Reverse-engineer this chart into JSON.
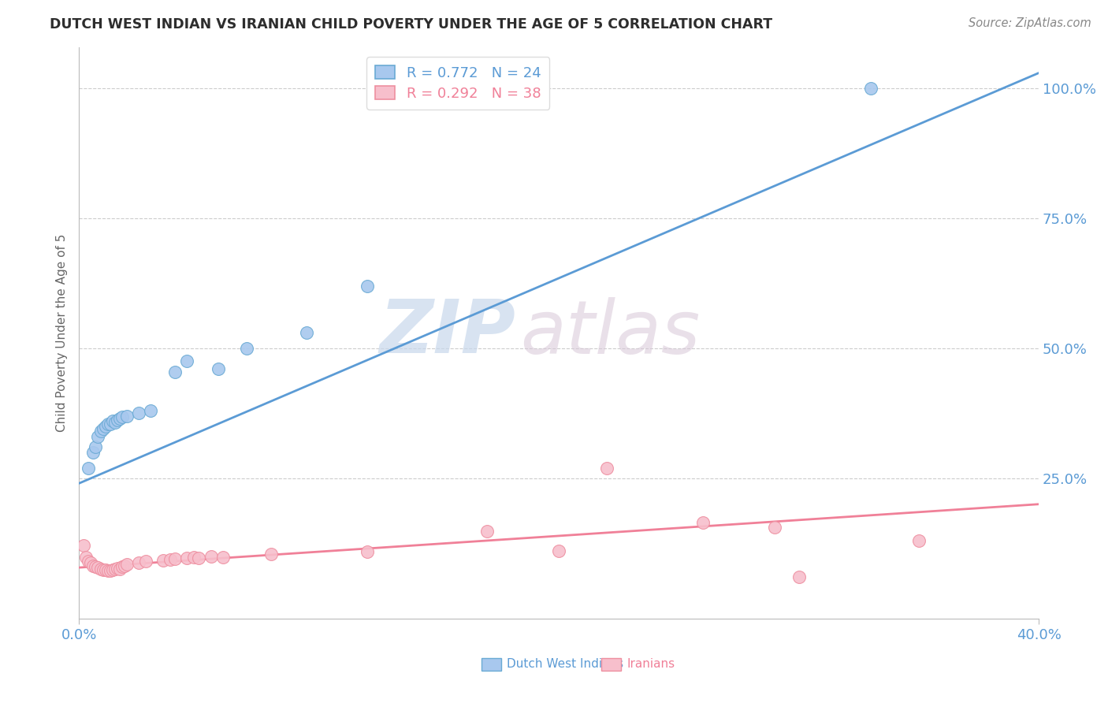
{
  "title": "DUTCH WEST INDIAN VS IRANIAN CHILD POVERTY UNDER THE AGE OF 5 CORRELATION CHART",
  "source": "Source: ZipAtlas.com",
  "ylabel": "Child Poverty Under the Age of 5",
  "xlim": [
    0.0,
    0.4
  ],
  "ylim": [
    -0.02,
    1.08
  ],
  "ytick_vals": [
    0.25,
    0.5,
    0.75,
    1.0
  ],
  "ytick_labels": [
    "25.0%",
    "50.0%",
    "75.0%",
    "100.0%"
  ],
  "xtick_vals": [
    0.0,
    0.4
  ],
  "xtick_labels": [
    "0.0%",
    "40.0%"
  ],
  "watermark_zip": "ZIP",
  "watermark_atlas": "atlas",
  "legend_R_blue": "R = 0.772",
  "legend_N_blue": "N = 24",
  "legend_R_pink": "R = 0.292",
  "legend_N_pink": "N = 38",
  "blue_fill": "#A8C8EE",
  "pink_fill": "#F7BFCC",
  "blue_edge": "#6AAAD4",
  "pink_edge": "#EE8FA0",
  "blue_line": "#5B9BD5",
  "pink_line": "#F08098",
  "title_color": "#2D2D2D",
  "source_color": "#888888",
  "tick_color": "#5B9BD5",
  "grid_color": "#CCCCCC",
  "ylabel_color": "#666666",
  "blue_scatter": [
    [
      0.004,
      0.27
    ],
    [
      0.006,
      0.3
    ],
    [
      0.007,
      0.31
    ],
    [
      0.008,
      0.33
    ],
    [
      0.009,
      0.34
    ],
    [
      0.01,
      0.345
    ],
    [
      0.011,
      0.35
    ],
    [
      0.012,
      0.355
    ],
    [
      0.013,
      0.355
    ],
    [
      0.014,
      0.36
    ],
    [
      0.015,
      0.358
    ],
    [
      0.016,
      0.362
    ],
    [
      0.017,
      0.365
    ],
    [
      0.018,
      0.368
    ],
    [
      0.02,
      0.37
    ],
    [
      0.025,
      0.375
    ],
    [
      0.03,
      0.38
    ],
    [
      0.04,
      0.455
    ],
    [
      0.045,
      0.475
    ],
    [
      0.058,
      0.46
    ],
    [
      0.07,
      0.5
    ],
    [
      0.095,
      0.53
    ],
    [
      0.12,
      0.62
    ],
    [
      0.33,
      1.0
    ]
  ],
  "pink_scatter": [
    [
      0.002,
      0.12
    ],
    [
      0.003,
      0.098
    ],
    [
      0.004,
      0.09
    ],
    [
      0.005,
      0.088
    ],
    [
      0.006,
      0.082
    ],
    [
      0.007,
      0.08
    ],
    [
      0.008,
      0.078
    ],
    [
      0.009,
      0.075
    ],
    [
      0.01,
      0.074
    ],
    [
      0.011,
      0.073
    ],
    [
      0.012,
      0.072
    ],
    [
      0.013,
      0.072
    ],
    [
      0.014,
      0.074
    ],
    [
      0.015,
      0.075
    ],
    [
      0.016,
      0.076
    ],
    [
      0.017,
      0.075
    ],
    [
      0.018,
      0.08
    ],
    [
      0.019,
      0.082
    ],
    [
      0.02,
      0.085
    ],
    [
      0.025,
      0.088
    ],
    [
      0.028,
      0.09
    ],
    [
      0.035,
      0.092
    ],
    [
      0.038,
      0.094
    ],
    [
      0.04,
      0.095
    ],
    [
      0.045,
      0.096
    ],
    [
      0.048,
      0.098
    ],
    [
      0.05,
      0.097
    ],
    [
      0.055,
      0.1
    ],
    [
      0.06,
      0.098
    ],
    [
      0.08,
      0.104
    ],
    [
      0.12,
      0.108
    ],
    [
      0.17,
      0.148
    ],
    [
      0.2,
      0.11
    ],
    [
      0.22,
      0.27
    ],
    [
      0.26,
      0.165
    ],
    [
      0.29,
      0.155
    ],
    [
      0.3,
      0.06
    ],
    [
      0.35,
      0.13
    ]
  ],
  "blue_trend_x": [
    0.0,
    0.4
  ],
  "blue_trend_y": [
    0.24,
    1.03
  ],
  "pink_trend_x": [
    0.0,
    0.4
  ],
  "pink_trend_y": [
    0.078,
    0.2
  ]
}
